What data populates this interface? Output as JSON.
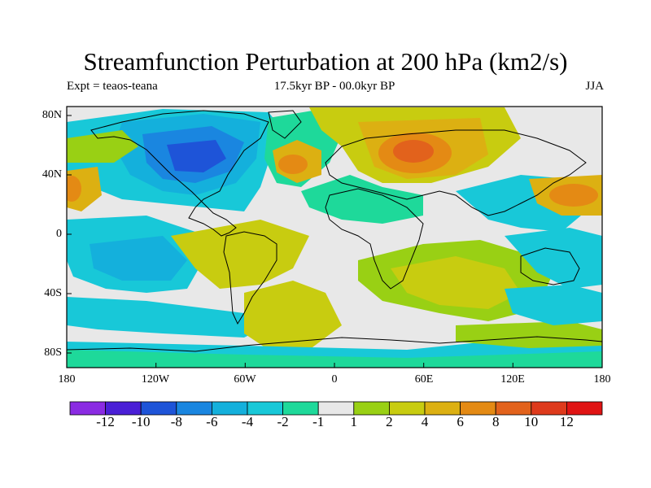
{
  "title": "Streamfunction Perturbation at 200 hPa (km2/s)",
  "subtitle_left": "Expt = teaos-teana",
  "subtitle_center": "17.5kyr BP - 00.0kyr BP",
  "subtitle_right": "JJA",
  "lat_labels": [
    "80N",
    "40N",
    "0",
    "40S",
    "80S"
  ],
  "lon_labels": [
    "180",
    "120W",
    "60W",
    "0",
    "60E",
    "120E",
    "180"
  ],
  "colorbar": {
    "labels": [
      "-12",
      "-10",
      "-8",
      "-6",
      "-4",
      "-2",
      "-1",
      "1",
      "2",
      "4",
      "6",
      "8",
      "10",
      "12"
    ],
    "colors": [
      "#8a2be2",
      "#4a1fd6",
      "#1e54d8",
      "#1a86e0",
      "#14b0dc",
      "#18c8d8",
      "#1ed99a",
      "#e8e8e8",
      "#99d014",
      "#c8cc10",
      "#dcb012",
      "#e48a14",
      "#e2621c",
      "#de3a1c",
      "#e01414"
    ]
  },
  "colors": {
    "land_outline": "#000000",
    "background": "#e8e8e8"
  }
}
